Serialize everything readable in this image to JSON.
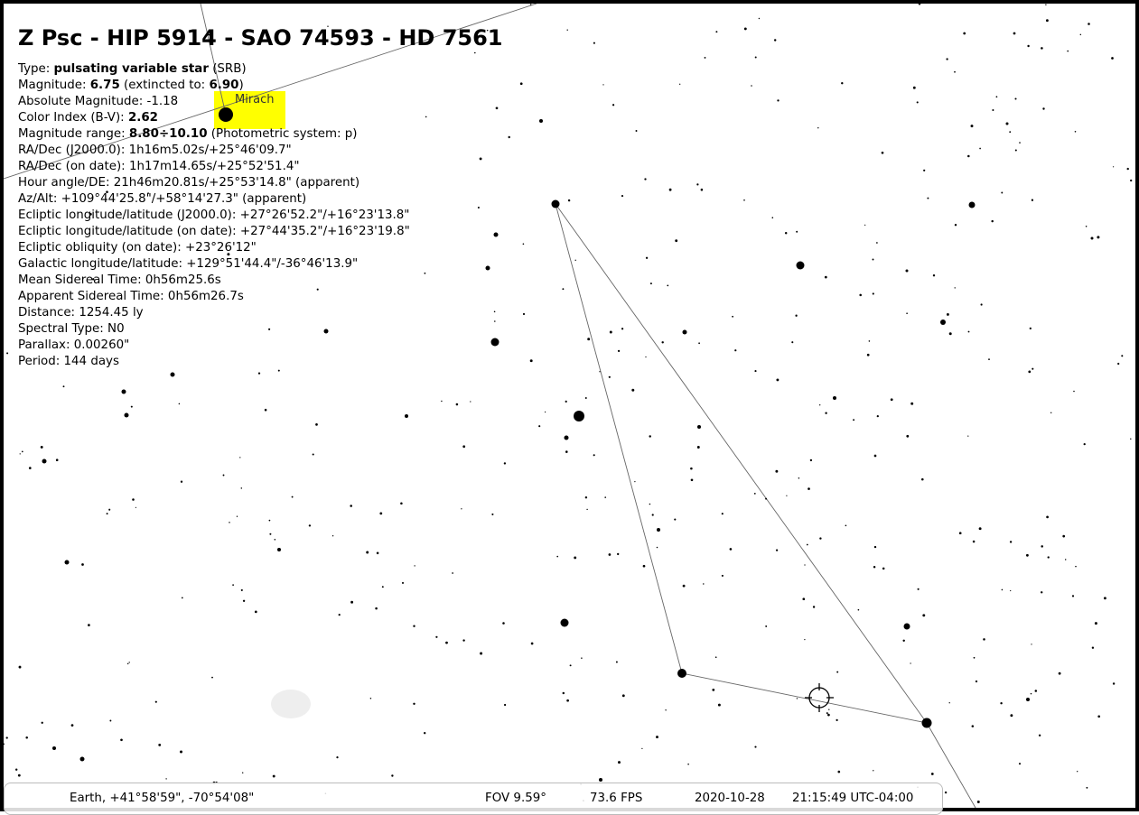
{
  "title": "Z Psc - HIP 5914 - SAO 74593 - HD 7561",
  "info_lines": [
    [
      {
        "text": "Type: ",
        "bold": false
      },
      {
        "text": "pulsating variable star",
        "bold": true
      },
      {
        "text": " (SRB)",
        "bold": false
      }
    ],
    [
      {
        "text": "Magnitude: ",
        "bold": false
      },
      {
        "text": "6.75",
        "bold": true
      },
      {
        "text": " (extincted to: ",
        "bold": false
      },
      {
        "text": "6.90",
        "bold": true
      },
      {
        "text": ")",
        "bold": false
      }
    ],
    [
      {
        "text": "Absolute Magnitude: -1.18",
        "bold": false
      }
    ],
    [
      {
        "text": "Color Index (B-V): ",
        "bold": false
      },
      {
        "text": "2.62",
        "bold": true
      }
    ],
    [
      {
        "text": "Magnitude range: ",
        "bold": false
      },
      {
        "text": "8.80÷10.10",
        "bold": true
      },
      {
        "text": " (Photometric system: p)",
        "bold": false
      }
    ],
    [
      {
        "text": "RA/Dec (J2000.0): 1h16m5.02s/+25°46'09.7\"",
        "bold": false
      }
    ],
    [
      {
        "text": "RA/Dec (on date): 1h17m14.65s/+25°52'51.4\"",
        "bold": false
      }
    ],
    [
      {
        "text": "Hour angle/DE: 21h46m20.81s/+25°53'14.8\" (apparent)",
        "bold": false
      }
    ],
    [
      {
        "text": "Az/Alt: +109°44'25.8\"/+58°14'27.3\" (apparent)",
        "bold": false
      }
    ],
    [
      {
        "text": "Ecliptic longitude/latitude (J2000.0): +27°26'52.2\"/+16°23'13.8\"",
        "bold": false
      }
    ],
    [
      {
        "text": "Ecliptic longitude/latitude (on date): +27°44'35.2\"/+16°23'19.8\"",
        "bold": false
      }
    ],
    [
      {
        "text": "Ecliptic obliquity (on date): +23°26'12\"",
        "bold": false
      }
    ],
    [
      {
        "text": "Galactic longitude/latitude: +129°51'44.4\"/-36°46'13.9\"",
        "bold": false
      }
    ],
    [
      {
        "text": "Mean Sidereal Time: 0h56m25.6s",
        "bold": false
      }
    ],
    [
      {
        "text": "Apparent Sidereal Time: 0h56m26.7s",
        "bold": false
      }
    ],
    [
      {
        "text": "Distance: 1254.45 ly",
        "bold": false
      }
    ],
    [
      {
        "text": "Spectral Type: N0",
        "bold": false
      }
    ],
    [
      {
        "text": "Parallax: 0.00260\"",
        "bold": false
      }
    ],
    [
      {
        "text": "Period: 144 days",
        "bold": false
      }
    ]
  ],
  "star_label": "Mirach",
  "status": {
    "location": "Earth, +41°58'59\", -70°54'08\"",
    "fov": "FOV 9.59°",
    "fps": "73.6 FPS",
    "date": "2020-10-28",
    "time": "21:15:49 UTC-04:00"
  }
}
